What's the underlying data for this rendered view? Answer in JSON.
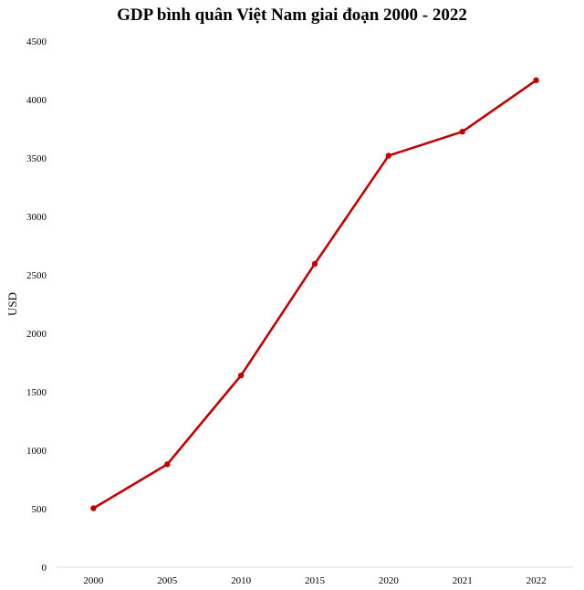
{
  "chart_data": {
    "type": "line",
    "title": "GDP bình quân Việt Nam giai đoạn 2000 - 2022",
    "xlabel": "",
    "ylabel": "USD",
    "categories": [
      "2000",
      "2005",
      "2010",
      "2015",
      "2020",
      "2021",
      "2022"
    ],
    "series": [
      {
        "values": [
          504,
          880,
          1640,
          2595,
          3520,
          3725,
          4165
        ]
      }
    ],
    "ylim": [
      0,
      4500
    ],
    "yticks": [
      "0",
      "500",
      "1000",
      "1500",
      "2000",
      "2500",
      "3000",
      "3500",
      "4000",
      "4500"
    ],
    "grid": false,
    "legend": "none",
    "line_color": "#c00000"
  }
}
